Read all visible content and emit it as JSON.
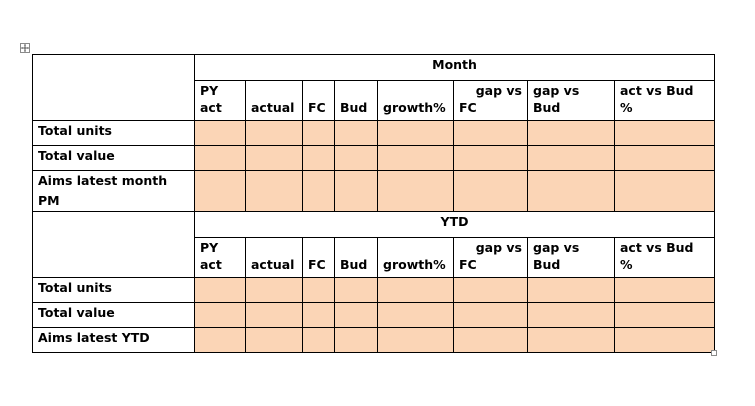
{
  "month_section": {
    "title": "Month",
    "columns": [
      {
        "top": "PY",
        "bottom": "act"
      },
      {
        "top": "",
        "bottom": "actual"
      },
      {
        "top": "",
        "bottom": "FC"
      },
      {
        "top": "",
        "bottom": "Bud"
      },
      {
        "top": "",
        "bottom": "growth%"
      },
      {
        "top": "gap vs",
        "bottom": "FC"
      },
      {
        "top": "gap vs",
        "bottom": "Bud"
      },
      {
        "top": "act vs Bud",
        "bottom": "%"
      }
    ],
    "rows": [
      "Total units",
      "Total value",
      "Aims latest month PM"
    ]
  },
  "ytd_section": {
    "title": "YTD",
    "columns": [
      {
        "top": "PY",
        "bottom": "act"
      },
      {
        "top": "",
        "bottom": "actual"
      },
      {
        "top": "",
        "bottom": "FC"
      },
      {
        "top": "",
        "bottom": "Bud"
      },
      {
        "top": "",
        "bottom": "growth%"
      },
      {
        "top": "gap vs",
        "bottom": "FC"
      },
      {
        "top": "gap vs",
        "bottom": "Bud"
      },
      {
        "top": "act vs Bud",
        "bottom": "%"
      }
    ],
    "rows": [
      "Total units",
      "Total value",
      "Aims latest YTD"
    ]
  },
  "colors": {
    "cell_fill": "#fbd5b6",
    "border": "#000000"
  }
}
